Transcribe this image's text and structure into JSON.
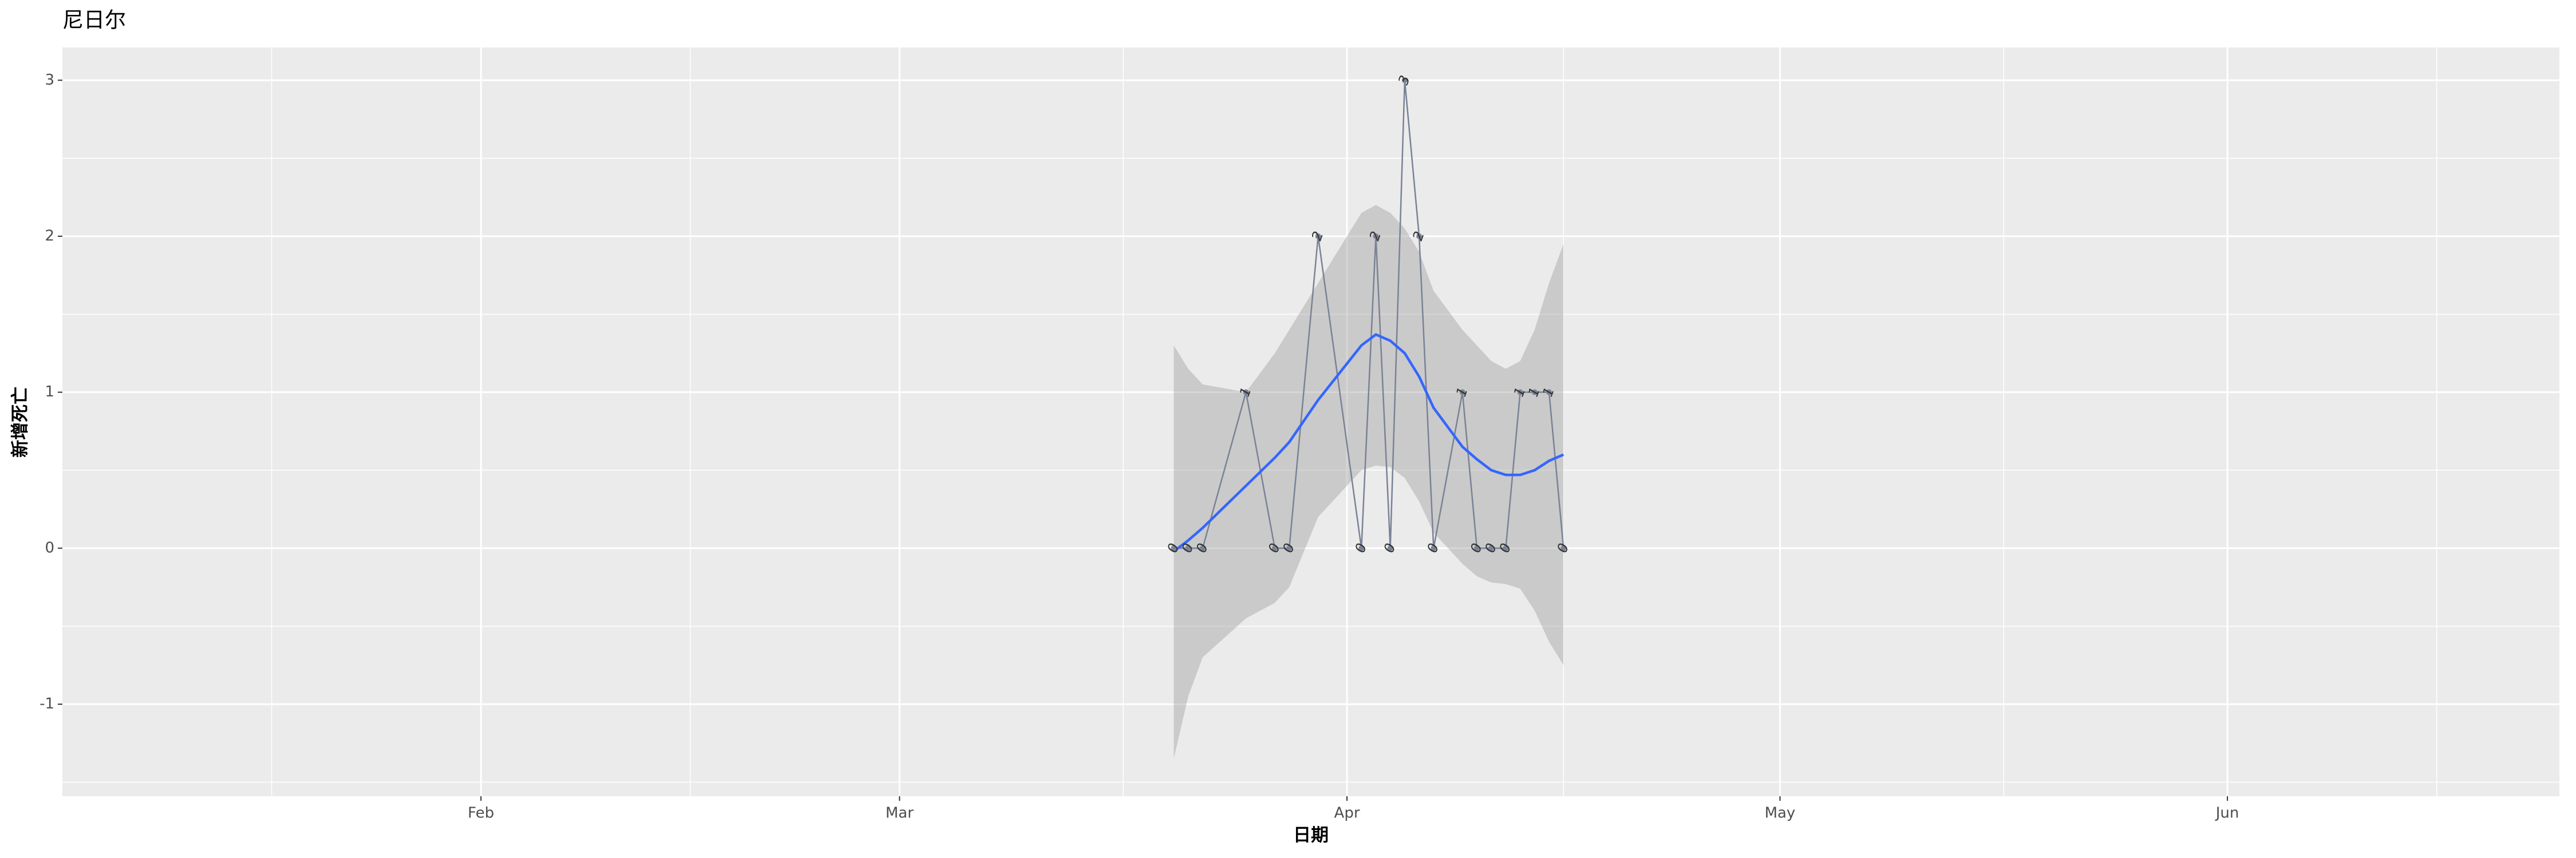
{
  "chart_data": {
    "type": "line",
    "title": "尼日尔",
    "x_label": "日期",
    "y_label": "新增死亡",
    "x": [
      "03-20",
      "03-21",
      "03-22",
      "03-25",
      "03-27",
      "03-28",
      "03-30",
      "04-02",
      "04-03",
      "04-04",
      "04-05",
      "04-06",
      "04-07",
      "04-09",
      "04-10",
      "04-11",
      "04-12",
      "04-13",
      "04-14",
      "04-15",
      "04-16"
    ],
    "values": [
      0,
      0,
      0,
      1,
      0,
      0,
      2,
      0,
      2,
      0,
      3,
      2,
      0,
      1,
      0,
      0,
      0,
      1,
      1,
      1,
      0
    ],
    "color": "#7a8296",
    "smooth": {
      "color": "#3366ff",
      "band_color": "#999999",
      "values": [
        -0.02,
        0.05,
        0.13,
        0.4,
        0.58,
        0.68,
        0.95,
        1.3,
        1.37,
        1.33,
        1.25,
        1.1,
        0.9,
        0.65,
        0.57,
        0.5,
        0.47,
        0.47,
        0.5,
        0.56,
        0.6
      ],
      "upper": [
        1.3,
        1.15,
        1.05,
        1.0,
        1.25,
        1.4,
        1.7,
        2.15,
        2.2,
        2.15,
        2.05,
        1.9,
        1.65,
        1.4,
        1.3,
        1.2,
        1.15,
        1.2,
        1.4,
        1.7,
        1.95
      ],
      "lower": [
        -1.35,
        -0.95,
        -0.7,
        -0.45,
        -0.35,
        -0.25,
        0.2,
        0.5,
        0.53,
        0.52,
        0.45,
        0.3,
        0.1,
        -0.1,
        -0.18,
        -0.22,
        -0.23,
        -0.26,
        -0.4,
        -0.6,
        -0.75
      ]
    },
    "xlim": [
      "01-03",
      "06-24"
    ],
    "xticks": [
      {
        "value": "02-01",
        "label": "Feb"
      },
      {
        "value": "03-01",
        "label": "Mar"
      },
      {
        "value": "04-01",
        "label": "Apr"
      },
      {
        "value": "05-01",
        "label": "May"
      },
      {
        "value": "06-01",
        "label": "Jun"
      }
    ],
    "ylim": [
      -1.59,
      3.21
    ],
    "yticks": [
      -1,
      0,
      1,
      2,
      3
    ],
    "grid": true
  }
}
